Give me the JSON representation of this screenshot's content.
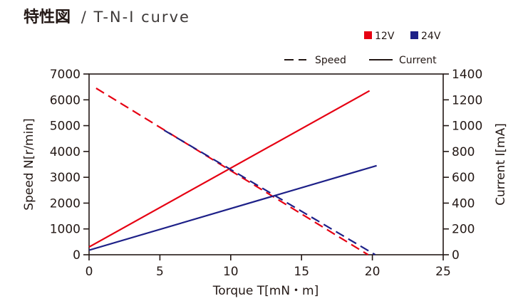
{
  "chart_data": {
    "type": "line",
    "title": "特性図 / T-N-I curve",
    "xlabel": "Torque T[mN・m]",
    "ylabel": "Speed N[r/min]",
    "y2label": "Current I[mA]",
    "xlim": [
      0,
      25
    ],
    "ylim": [
      0,
      7000
    ],
    "y2lim": [
      0,
      1400
    ],
    "xticks": [
      0,
      5,
      10,
      15,
      20,
      25
    ],
    "yticks": [
      0,
      1000,
      2000,
      3000,
      4000,
      5000,
      6000,
      7000
    ],
    "y2ticks": [
      0,
      200,
      400,
      600,
      800,
      1000,
      1200,
      1400
    ],
    "grid": false,
    "legend_position": "top-right",
    "line_styles": {
      "speed": {
        "label": "Speed",
        "dash": "dashed",
        "axis": "left"
      },
      "current": {
        "label": "Current",
        "dash": "solid",
        "axis": "right"
      }
    },
    "series": [
      {
        "name": "12V",
        "color": "#e60012",
        "speed": [
          [
            0.5,
            6450
          ],
          [
            19.7,
            0
          ]
        ],
        "current": [
          [
            0,
            60
          ],
          [
            19.8,
            1270
          ]
        ]
      },
      {
        "name": "24V",
        "color": "#1d2088",
        "speed": [
          [
            5.3,
            4820
          ],
          [
            20.2,
            0
          ]
        ],
        "current": [
          [
            0,
            35
          ],
          [
            20.3,
            690
          ]
        ]
      }
    ]
  }
}
